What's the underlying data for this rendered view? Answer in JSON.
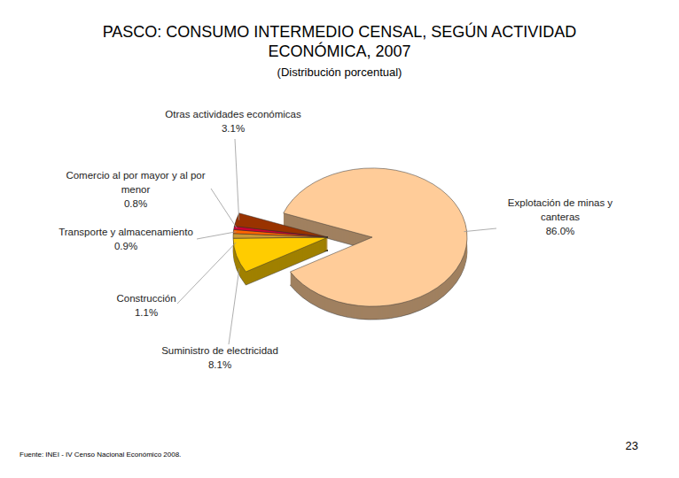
{
  "chart_data": {
    "type": "pie",
    "title": "PASCO: CONSUMO INTERMEDIO CENSAL, SEGÚN ACTIVIDAD ECONÓMICA, 2007",
    "subtitle": "(Distribución porcentual)",
    "categories": [
      "Explotación de minas y canteras",
      "Suministro de electricidad",
      "Construcción",
      "Transporte y almacenamiento",
      "Comercio al por mayor y al por menor",
      "Otras actividades económicas"
    ],
    "values": [
      86.0,
      8.1,
      1.1,
      0.9,
      0.8,
      3.1
    ],
    "value_labels": [
      "86.0%",
      "8.1%",
      "1.1%",
      "0.9%",
      "0.8%",
      "3.1%"
    ],
    "colors": [
      "#FFCC99",
      "#FFCC00",
      "#CC9933",
      "#FF6600",
      "#CC0033",
      "#993300"
    ],
    "data_labels": true,
    "source": "Fuente: INEI - IV Censo Nacional Económico 2008.",
    "page_number": "23"
  }
}
